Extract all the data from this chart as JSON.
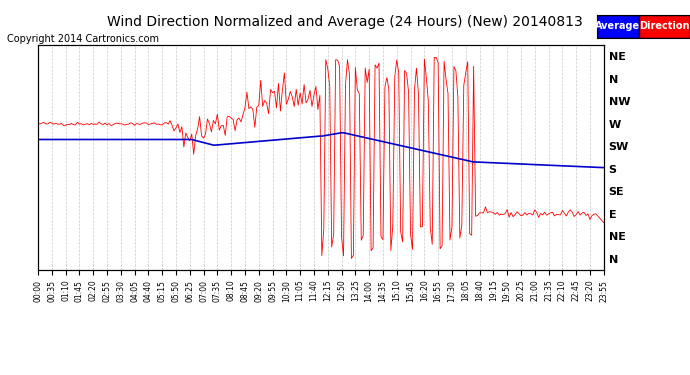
{
  "title": "Wind Direction Normalized and Average (24 Hours) (New) 20140813",
  "copyright": "Copyright 2014 Cartronics.com",
  "background_color": "#ffffff",
  "plot_bg_color": "#ffffff",
  "grid_color": "#bbbbbb",
  "red_line_color": "#ff0000",
  "blue_line_color": "#0000cc",
  "ytick_labels": [
    "NE",
    "N",
    "NW",
    "W",
    "SW",
    "S",
    "SE",
    "E",
    "NE",
    "N"
  ],
  "ytick_positions": [
    10,
    9,
    8,
    7,
    6,
    5,
    4,
    3,
    2,
    1
  ],
  "ylim": [
    0.5,
    10.5
  ],
  "num_points": 288,
  "title_fontsize": 10,
  "copyright_fontsize": 7
}
